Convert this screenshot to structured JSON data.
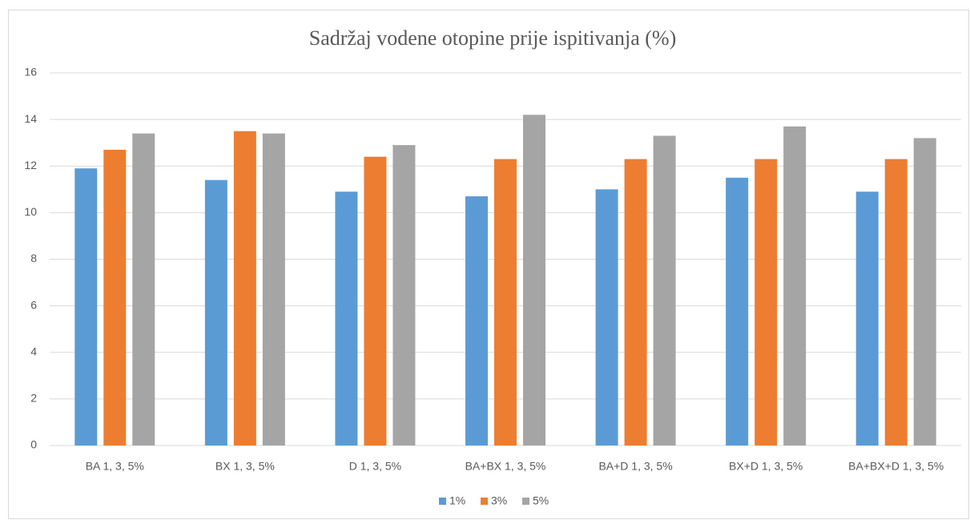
{
  "chart_data": {
    "type": "bar",
    "title": "Sadržaj vodene otopine prije ispitivanja  (%)",
    "categories": [
      "BA 1, 3, 5%",
      "BX 1, 3, 5%",
      "D 1, 3, 5%",
      "BA+BX 1, 3, 5%",
      "BA+D 1, 3, 5%",
      "BX+D 1, 3, 5%",
      "BA+BX+D 1, 3, 5%"
    ],
    "series": [
      {
        "name": "1%",
        "color": "#5b9bd5",
        "values": [
          11.9,
          11.4,
          10.9,
          10.7,
          11.0,
          11.5,
          10.9
        ]
      },
      {
        "name": "3%",
        "color": "#ed7d31",
        "values": [
          12.7,
          13.5,
          12.4,
          12.3,
          12.3,
          12.3,
          12.3
        ]
      },
      {
        "name": "5%",
        "color": "#a5a5a5",
        "values": [
          13.4,
          13.4,
          12.9,
          14.2,
          13.3,
          13.7,
          13.2
        ]
      }
    ],
    "ylim": [
      0,
      16
    ],
    "yticks": [
      0,
      2,
      4,
      6,
      8,
      10,
      12,
      14,
      16
    ],
    "grid": true,
    "legend": "bottom"
  }
}
